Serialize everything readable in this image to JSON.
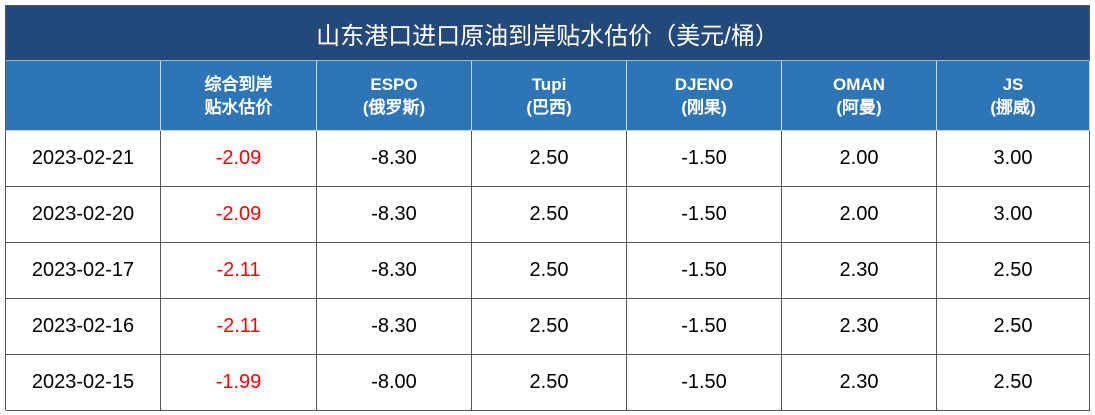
{
  "title": "山东港口进口原油到岸贴水估价（美元/桶）",
  "table": {
    "header": [
      [
        "综合到岸",
        "贴水估价"
      ],
      [
        "ESPO",
        "(俄罗斯)"
      ],
      [
        "Tupi",
        "(巴西)"
      ],
      [
        "DJENO",
        "(刚果)"
      ],
      [
        "OMAN",
        "(阿曼)"
      ],
      [
        "JS",
        "(挪威)"
      ]
    ],
    "rows": [
      [
        "2023-02-21",
        "-2.09",
        "-8.30",
        "2.50",
        "-1.50",
        "2.00",
        "3.00"
      ],
      [
        "2023-02-20",
        "-2.09",
        "-8.30",
        "2.50",
        "-1.50",
        "2.00",
        "3.00"
      ],
      [
        "2023-02-17",
        "-2.11",
        "-8.30",
        "2.50",
        "-1.50",
        "2.30",
        "2.50"
      ],
      [
        "2023-02-16",
        "-2.11",
        "-8.30",
        "2.50",
        "-1.50",
        "2.30",
        "2.50"
      ],
      [
        "2023-02-15",
        "-1.99",
        "-8.00",
        "2.50",
        "-1.50",
        "2.30",
        "2.50"
      ]
    ]
  }
}
